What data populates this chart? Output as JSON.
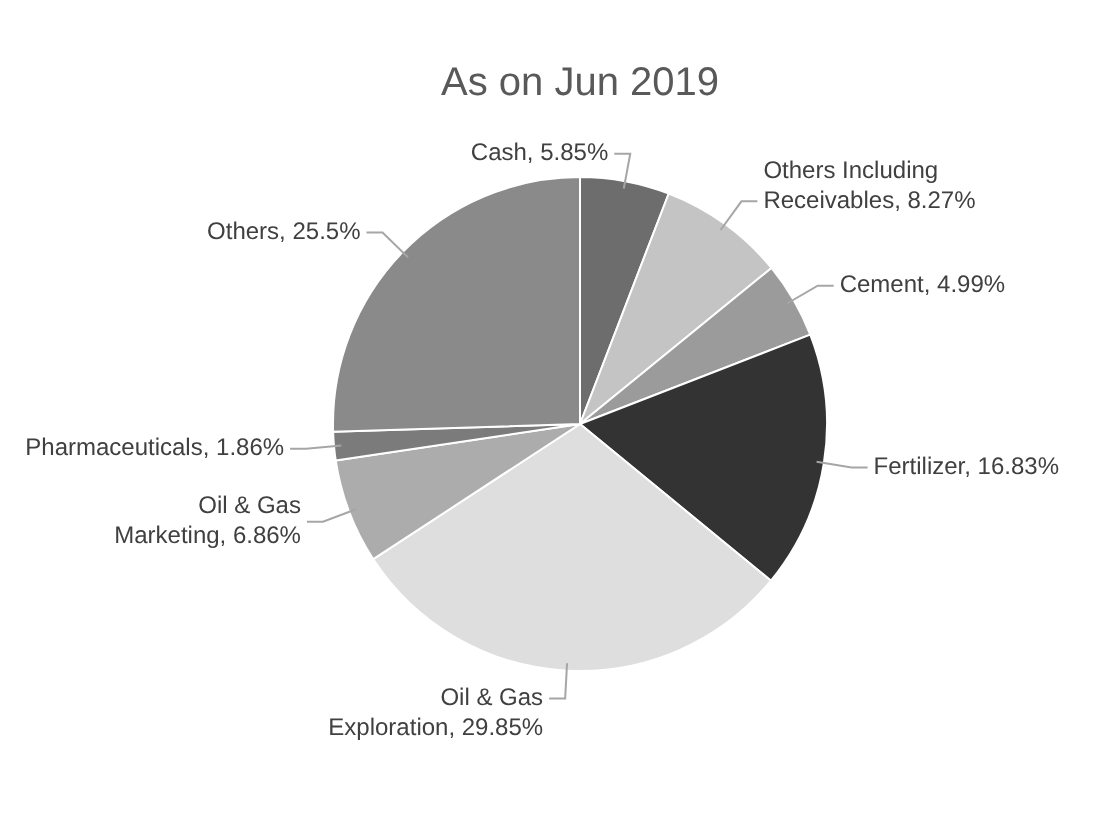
{
  "chart_data": {
    "type": "pie",
    "title": "As on Jun 2019",
    "categories": [
      "Cash",
      "Others Including Receivables",
      "Cement",
      "Fertilizer",
      "Oil & Gas Exploration",
      "Oil & Gas Marketing",
      "Pharmaceuticals",
      "Others"
    ],
    "values": [
      5.85,
      8.27,
      4.99,
      16.83,
      29.85,
      6.86,
      1.86,
      25.5
    ],
    "value_labels": [
      "5.85%",
      "8.27%",
      "4.99%",
      "16.83%",
      "29.85%",
      "6.86%",
      "1.86%",
      "25.5%"
    ],
    "colors": [
      "#6d6d6d",
      "#c4c4c4",
      "#9b9b9b",
      "#333333",
      "#dedede",
      "#acacac",
      "#7b7b7b",
      "#8a8a8a"
    ],
    "legend": false
  }
}
